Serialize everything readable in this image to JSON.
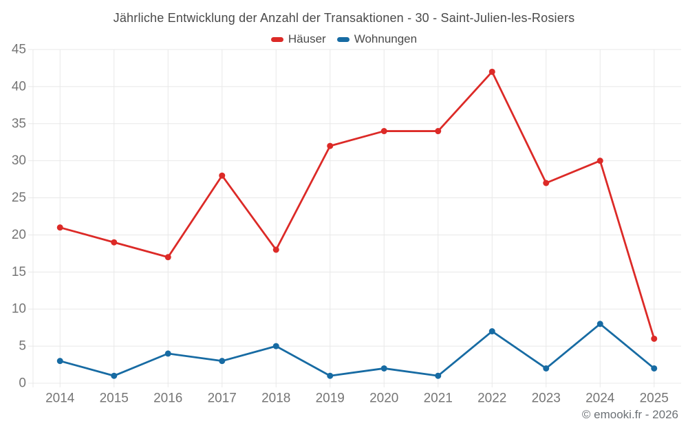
{
  "chart_data": {
    "type": "line",
    "title": "Jährliche Entwicklung der Anzahl der Transaktionen - 30 - Saint-Julien-les-Rosiers",
    "categories": [
      "2014",
      "2015",
      "2016",
      "2017",
      "2018",
      "2019",
      "2020",
      "2021",
      "2022",
      "2023",
      "2024",
      "2025"
    ],
    "series": [
      {
        "name": "Häuser",
        "color": "#dc2a27",
        "values": [
          21,
          19,
          17,
          28,
          18,
          32,
          34,
          34,
          42,
          27,
          30,
          6
        ]
      },
      {
        "name": "Wohnungen",
        "color": "#176ba3",
        "values": [
          3,
          1,
          4,
          3,
          5,
          1,
          2,
          1,
          7,
          2,
          8,
          2
        ]
      }
    ],
    "ylim": [
      0,
      45
    ],
    "yticks": [
      0,
      5,
      10,
      15,
      20,
      25,
      30,
      35,
      40,
      45
    ],
    "grid": true,
    "legend_position": "top",
    "axis_label_color": "#757575",
    "gridline_color": "#e8e8e8"
  },
  "footer": {
    "copyright": "© emooki.fr - 2026"
  }
}
